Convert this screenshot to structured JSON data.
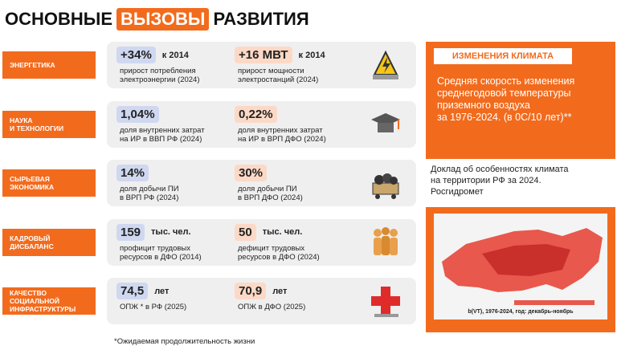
{
  "title": {
    "part1": "ОСНОВНЫЕ",
    "highlight": "ВЫЗОВЫ",
    "part2": "РАЗВИТИЯ"
  },
  "rows": [
    {
      "label": [
        "ЭНЕРГЕТИКА"
      ],
      "items": [
        {
          "value": "+34%",
          "unit": "к 2014",
          "desc": [
            "прирост потребления",
            "электроэнергии (2024)"
          ]
        },
        {
          "value": "+16 МВТ",
          "unit": "к 2014",
          "desc": [
            "прирост мощности",
            "электростанций (2024)"
          ]
        }
      ]
    },
    {
      "label": [
        "НАУКА",
        "И ТЕХНОЛОГИИ"
      ],
      "items": [
        {
          "value": "1,04%",
          "desc": [
            "доля внутренних затрат",
            "на ИР в ВВП РФ (2024)"
          ]
        },
        {
          "value": "0,22%",
          "desc": [
            "доля внутренних затрат",
            "на ИР в ВРП ДФО (2024)"
          ]
        }
      ]
    },
    {
      "label": [
        "СЫРЬЕВАЯ",
        "ЭКОНОМИКА"
      ],
      "items": [
        {
          "value": "14%",
          "desc": [
            "доля добычи ПИ",
            "в ВРП РФ (2024)"
          ]
        },
        {
          "value": "30%",
          "desc": [
            "доля добычи ПИ",
            "в ВРП ДФО (2024)"
          ]
        }
      ]
    },
    {
      "label": [
        "КАДРОВЫЙ",
        "ДИСБАЛАНС"
      ],
      "items": [
        {
          "value": "159",
          "unit": "тыс. чел.",
          "desc": [
            "профицит трудовых",
            "ресурсов в ДФО (2014)"
          ]
        },
        {
          "value": "50",
          "unit": "тыс. чел.",
          "desc": [
            "дефицит трудовых",
            "ресурсов в ДФО (2024)"
          ]
        }
      ]
    },
    {
      "label": [
        "КАЧЕСТВО",
        "СОЦИАЛЬНОЙ",
        "ИНФРАСТРУКТУРЫ"
      ],
      "items": [
        {
          "value": "74,5",
          "unit": "лет",
          "desc": [
            "ОПЖ * в РФ (2025)"
          ]
        },
        {
          "value": "70,9",
          "unit": "лет",
          "desc": [
            "ОПЖ в ДФО (2025)"
          ]
        }
      ]
    }
  ],
  "climate": {
    "heading": "ИЗМЕНЕНИЯ КЛИМАТА",
    "text": [
      "Средняя скорость изменения",
      "среднегодовой температуры",
      "приземного воздуха",
      "за 1976-2024. (в 0С/10 лет)**"
    ],
    "source": [
      "Доклад об особенностях климата",
      "на территории РФ за 2024.",
      "Росгидромет"
    ],
    "map_caption": "b(VT), 1976-2024, год: декабрь-ноябрь"
  },
  "footnote": "*Ожидаемая продолжительность жизни"
}
